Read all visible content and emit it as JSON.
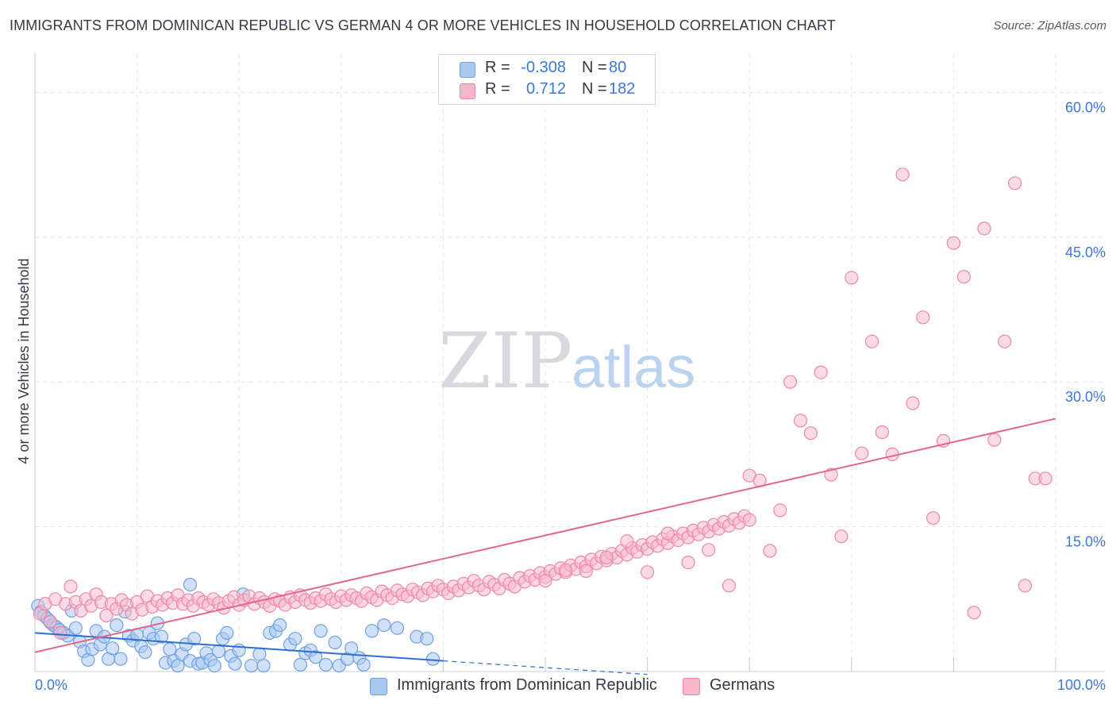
{
  "title": "IMMIGRANTS FROM DOMINICAN REPUBLIC VS GERMAN 4 OR MORE VEHICLES IN HOUSEHOLD CORRELATION CHART",
  "source": "Source: ZipAtlas.com",
  "watermark": {
    "zip": "ZIP",
    "atlas": "atlas"
  },
  "legend": {
    "rows": [
      {
        "r_label": "R =",
        "r_value": "-0.308",
        "n_label": "N =",
        "n_value": "80",
        "color": "#a8c8f0"
      },
      {
        "r_label": "R =",
        "r_value": "0.712",
        "n_label": "N =",
        "n_value": "182",
        "color": "#f5b8ca"
      }
    ]
  },
  "bottom_legend": [
    {
      "label": "Immigrants from Dominican Republic",
      "color": "#a8c8f0"
    },
    {
      "label": "Germans",
      "color": "#f5b8ca"
    }
  ],
  "chart_data": {
    "type": "scatter",
    "title": "IMMIGRANTS FROM DOMINICAN REPUBLIC VS GERMAN 4 OR MORE VEHICLES IN HOUSEHOLD CORRELATION CHART",
    "xlabel": "",
    "ylabel": "4 or more Vehicles in Household",
    "xlim": [
      0,
      100
    ],
    "ylim": [
      0,
      63
    ],
    "x_tick_labels": [
      {
        "value": 0,
        "label": "0.0%"
      },
      {
        "value": 100,
        "label": "100.0%"
      }
    ],
    "y_tick_labels": [
      {
        "value": 15,
        "label": "15.0%"
      },
      {
        "value": 30,
        "label": "30.0%"
      },
      {
        "value": 45,
        "label": "45.0%"
      },
      {
        "value": 60,
        "label": "60.0%"
      }
    ],
    "grid": true,
    "legend_position": "top-center",
    "series": [
      {
        "name": "Immigrants from Dominican Republic",
        "color": "#6fa0e3",
        "fill": "#aac8f0",
        "trend": {
          "x0": 0,
          "y0": 4.0,
          "x1": 40,
          "y1": 1.1,
          "dashed_to_x": 60,
          "dashed_to_y": -0.3,
          "color": "#2d6fd0"
        },
        "points": [
          [
            0.3,
            6.8
          ],
          [
            0.6,
            6.2
          ],
          [
            0.9,
            5.8
          ],
          [
            1.2,
            5.5
          ],
          [
            1.5,
            5.1
          ],
          [
            1.8,
            4.8
          ],
          [
            2.1,
            4.6
          ],
          [
            2.4,
            4.3
          ],
          [
            2.8,
            4.0
          ],
          [
            3.2,
            3.7
          ],
          [
            3.6,
            6.3
          ],
          [
            4.0,
            4.5
          ],
          [
            4.4,
            3.1
          ],
          [
            4.8,
            2.1
          ],
          [
            5.2,
            1.2
          ],
          [
            5.6,
            2.3
          ],
          [
            6.0,
            4.2
          ],
          [
            6.4,
            2.8
          ],
          [
            6.8,
            3.6
          ],
          [
            7.2,
            1.3
          ],
          [
            7.6,
            2.4
          ],
          [
            8.0,
            4.8
          ],
          [
            8.4,
            1.3
          ],
          [
            8.8,
            6.2
          ],
          [
            9.2,
            3.7
          ],
          [
            9.6,
            3.2
          ],
          [
            10.0,
            3.8
          ],
          [
            10.4,
            2.6
          ],
          [
            10.8,
            2.0
          ],
          [
            11.2,
            4.0
          ],
          [
            11.6,
            3.4
          ],
          [
            12.0,
            5.0
          ],
          [
            12.4,
            3.6
          ],
          [
            12.8,
            0.9
          ],
          [
            13.2,
            2.3
          ],
          [
            13.6,
            1.1
          ],
          [
            14.0,
            0.6
          ],
          [
            14.4,
            1.8
          ],
          [
            14.8,
            2.8
          ],
          [
            15.2,
            1.1
          ],
          [
            15.6,
            3.4
          ],
          [
            16.0,
            0.8
          ],
          [
            16.4,
            0.9
          ],
          [
            16.8,
            1.9
          ],
          [
            17.2,
            1.2
          ],
          [
            17.6,
            0.6
          ],
          [
            18.0,
            2.1
          ],
          [
            18.4,
            3.4
          ],
          [
            18.8,
            4.0
          ],
          [
            19.2,
            1.6
          ],
          [
            19.6,
            0.8
          ],
          [
            20.0,
            2.2
          ],
          [
            20.4,
            8.0
          ],
          [
            21.2,
            0.6
          ],
          [
            22.0,
            1.8
          ],
          [
            22.4,
            0.6
          ],
          [
            23.0,
            4.0
          ],
          [
            23.6,
            4.2
          ],
          [
            24.0,
            4.8
          ],
          [
            25.0,
            2.8
          ],
          [
            25.5,
            3.4
          ],
          [
            26.0,
            0.7
          ],
          [
            26.5,
            1.9
          ],
          [
            27.0,
            2.2
          ],
          [
            27.5,
            1.5
          ],
          [
            28.0,
            4.2
          ],
          [
            28.5,
            0.7
          ],
          [
            29.4,
            3.0
          ],
          [
            29.8,
            0.6
          ],
          [
            30.6,
            1.3
          ],
          [
            31.0,
            2.4
          ],
          [
            31.8,
            1.4
          ],
          [
            32.2,
            0.7
          ],
          [
            33.0,
            4.2
          ],
          [
            34.2,
            4.8
          ],
          [
            35.5,
            4.5
          ],
          [
            37.4,
            3.6
          ],
          [
            38.4,
            3.4
          ],
          [
            39.0,
            1.3
          ],
          [
            15.2,
            9.0
          ]
        ]
      },
      {
        "name": "Germans",
        "color": "#ee87a8",
        "fill": "#f6bccd",
        "trend": {
          "x0": 0,
          "y0": 2.0,
          "x1": 100,
          "y1": 26.2,
          "color": "#e36690"
        },
        "points": [
          [
            0.5,
            6.0
          ],
          [
            1,
            7.0
          ],
          [
            1.5,
            5.2
          ],
          [
            2,
            7.5
          ],
          [
            2.5,
            4.0
          ],
          [
            3,
            7.0
          ],
          [
            3.5,
            8.8
          ],
          [
            4,
            7.2
          ],
          [
            4.5,
            6.3
          ],
          [
            5,
            7.5
          ],
          [
            5.5,
            6.8
          ],
          [
            6,
            8.0
          ],
          [
            6.5,
            7.2
          ],
          [
            7,
            5.8
          ],
          [
            7.5,
            7.0
          ],
          [
            8,
            6.5
          ],
          [
            8.5,
            7.4
          ],
          [
            9,
            6.9
          ],
          [
            9.5,
            6.0
          ],
          [
            10,
            7.2
          ],
          [
            10.5,
            6.4
          ],
          [
            11,
            7.8
          ],
          [
            11.5,
            6.7
          ],
          [
            12,
            7.3
          ],
          [
            12.5,
            6.9
          ],
          [
            13,
            7.6
          ],
          [
            13.5,
            7.1
          ],
          [
            14,
            7.9
          ],
          [
            14.5,
            7.0
          ],
          [
            15,
            7.4
          ],
          [
            15.5,
            6.8
          ],
          [
            16,
            7.6
          ],
          [
            16.5,
            7.2
          ],
          [
            17,
            6.9
          ],
          [
            17.5,
            7.5
          ],
          [
            18,
            7.1
          ],
          [
            18.5,
            6.6
          ],
          [
            19,
            7.3
          ],
          [
            19.5,
            7.7
          ],
          [
            20,
            6.9
          ],
          [
            20.5,
            7.4
          ],
          [
            21,
            7.8
          ],
          [
            21.5,
            7.0
          ],
          [
            22,
            7.6
          ],
          [
            22.5,
            7.2
          ],
          [
            23,
            6.8
          ],
          [
            23.5,
            7.5
          ],
          [
            24,
            7.3
          ],
          [
            24.5,
            6.9
          ],
          [
            25,
            7.7
          ],
          [
            25.5,
            7.2
          ],
          [
            26,
            7.9
          ],
          [
            26.5,
            7.4
          ],
          [
            27,
            7.1
          ],
          [
            27.5,
            7.6
          ],
          [
            28,
            7.3
          ],
          [
            28.5,
            8.0
          ],
          [
            29,
            7.5
          ],
          [
            29.5,
            7.2
          ],
          [
            30,
            7.8
          ],
          [
            30.5,
            7.4
          ],
          [
            31,
            7.9
          ],
          [
            31.5,
            7.6
          ],
          [
            32,
            7.3
          ],
          [
            32.5,
            8.1
          ],
          [
            33,
            7.7
          ],
          [
            33.5,
            7.4
          ],
          [
            34,
            8.3
          ],
          [
            34.5,
            7.9
          ],
          [
            35,
            7.6
          ],
          [
            35.5,
            8.4
          ],
          [
            36,
            8.0
          ],
          [
            36.5,
            7.8
          ],
          [
            37,
            8.5
          ],
          [
            37.5,
            8.2
          ],
          [
            38,
            7.9
          ],
          [
            38.5,
            8.6
          ],
          [
            39,
            8.3
          ],
          [
            39.5,
            8.9
          ],
          [
            40,
            8.5
          ],
          [
            40.5,
            8.1
          ],
          [
            41,
            8.8
          ],
          [
            41.5,
            8.4
          ],
          [
            42,
            9.1
          ],
          [
            42.5,
            8.7
          ],
          [
            43,
            9.4
          ],
          [
            43.5,
            8.9
          ],
          [
            44,
            8.5
          ],
          [
            44.5,
            9.3
          ],
          [
            45,
            9.0
          ],
          [
            45.5,
            8.6
          ],
          [
            46,
            9.5
          ],
          [
            46.5,
            9.1
          ],
          [
            47,
            8.8
          ],
          [
            47.5,
            9.7
          ],
          [
            48,
            9.3
          ],
          [
            48.5,
            9.9
          ],
          [
            49,
            9.5
          ],
          [
            49.5,
            10.2
          ],
          [
            50,
            9.8
          ],
          [
            50.5,
            10.4
          ],
          [
            51,
            10.1
          ],
          [
            51.5,
            10.7
          ],
          [
            52,
            10.3
          ],
          [
            52.5,
            11.0
          ],
          [
            53,
            10.6
          ],
          [
            53.5,
            11.3
          ],
          [
            54,
            10.9
          ],
          [
            54.5,
            11.6
          ],
          [
            55,
            11.2
          ],
          [
            55.5,
            11.9
          ],
          [
            56,
            11.5
          ],
          [
            56.5,
            12.2
          ],
          [
            57,
            11.8
          ],
          [
            57.5,
            12.5
          ],
          [
            58,
            12.1
          ],
          [
            58.5,
            12.8
          ],
          [
            59,
            12.4
          ],
          [
            59.5,
            13.1
          ],
          [
            60,
            12.7
          ],
          [
            60.5,
            13.4
          ],
          [
            61,
            13.0
          ],
          [
            61.5,
            13.7
          ],
          [
            62,
            13.3
          ],
          [
            62.5,
            14.0
          ],
          [
            63,
            13.6
          ],
          [
            63.5,
            14.3
          ],
          [
            64,
            13.9
          ],
          [
            64.5,
            14.6
          ],
          [
            65,
            14.2
          ],
          [
            65.5,
            14.9
          ],
          [
            66,
            14.5
          ],
          [
            66.5,
            15.2
          ],
          [
            67,
            14.8
          ],
          [
            67.5,
            15.5
          ],
          [
            68,
            15.1
          ],
          [
            68.5,
            15.8
          ],
          [
            69,
            15.4
          ],
          [
            69.5,
            16.1
          ],
          [
            70,
            15.7
          ],
          [
            50,
            9.4
          ],
          [
            52,
            10.5
          ],
          [
            54,
            10.4
          ],
          [
            56,
            11.8
          ],
          [
            58,
            13.5
          ],
          [
            60,
            10.3
          ],
          [
            62,
            14.3
          ],
          [
            64,
            11.3
          ],
          [
            66,
            12.6
          ],
          [
            68,
            8.9
          ],
          [
            70,
            20.3
          ],
          [
            71,
            19.8
          ],
          [
            72,
            12.5
          ],
          [
            73,
            16.7
          ],
          [
            74,
            30.0
          ],
          [
            75,
            26.0
          ],
          [
            76,
            24.7
          ],
          [
            77,
            31.0
          ],
          [
            78,
            20.4
          ],
          [
            79,
            14.0
          ],
          [
            80,
            40.8
          ],
          [
            81,
            22.6
          ],
          [
            82,
            34.2
          ],
          [
            83,
            24.8
          ],
          [
            84,
            22.5
          ],
          [
            85,
            51.5
          ],
          [
            86,
            27.8
          ],
          [
            87,
            36.7
          ],
          [
            88,
            15.9
          ],
          [
            89,
            23.9
          ],
          [
            90,
            44.4
          ],
          [
            91,
            40.9
          ],
          [
            92,
            6.1
          ],
          [
            93,
            45.9
          ],
          [
            94,
            24.0
          ],
          [
            95,
            34.2
          ],
          [
            96,
            50.6
          ],
          [
            97,
            8.9
          ],
          [
            98,
            20.0
          ],
          [
            99,
            20.0
          ]
        ]
      }
    ]
  }
}
